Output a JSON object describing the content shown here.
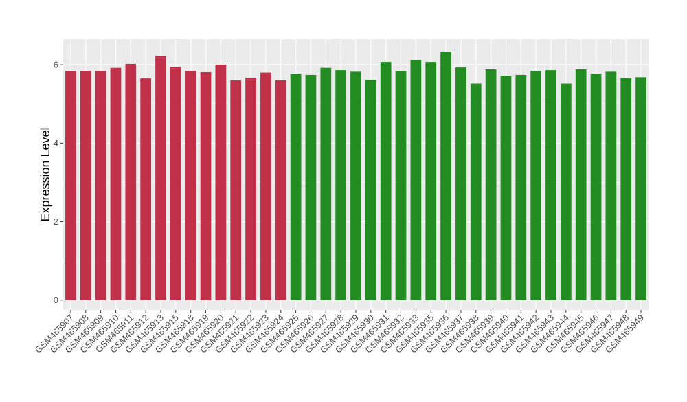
{
  "chart_data": {
    "type": "bar",
    "title": "",
    "xlabel": "",
    "ylabel": "Expression Level",
    "ylim": [
      -0.25,
      6.65
    ],
    "yticks": [
      0,
      2,
      4,
      6
    ],
    "grid": true,
    "legend": "none",
    "colors": {
      "group_a": "#c1314a",
      "group_b": "#228b22",
      "panel": "#ebebeb",
      "grid": "#ffffff"
    },
    "categories": [
      "GSM465907",
      "GSM465908",
      "GSM465909",
      "GSM465910",
      "GSM465911",
      "GSM465912",
      "GSM465913",
      "GSM465915",
      "GSM465918",
      "GSM465919",
      "GSM465920",
      "GSM465921",
      "GSM465922",
      "GSM465923",
      "GSM465924",
      "GSM465925",
      "GSM465926",
      "GSM465927",
      "GSM465928",
      "GSM465929",
      "GSM465930",
      "GSM465931",
      "GSM465932",
      "GSM465933",
      "GSM465935",
      "GSM465936",
      "GSM465937",
      "GSM465938",
      "GSM465939",
      "GSM465940",
      "GSM465941",
      "GSM465942",
      "GSM465943",
      "GSM465944",
      "GSM465945",
      "GSM465946",
      "GSM465947",
      "GSM465948",
      "GSM465949"
    ],
    "values": [
      5.83,
      5.83,
      5.83,
      5.92,
      6.02,
      5.65,
      6.23,
      5.95,
      5.83,
      5.81,
      6.0,
      5.6,
      5.67,
      5.8,
      5.6,
      5.77,
      5.74,
      5.92,
      5.86,
      5.82,
      5.61,
      6.07,
      5.83,
      6.11,
      6.07,
      6.33,
      5.93,
      5.52,
      5.88,
      5.72,
      5.74,
      5.84,
      5.86,
      5.52,
      5.88,
      5.77,
      5.82,
      5.66,
      5.68
    ],
    "groups": [
      "a",
      "a",
      "a",
      "a",
      "a",
      "a",
      "a",
      "a",
      "a",
      "a",
      "a",
      "a",
      "a",
      "a",
      "a",
      "b",
      "b",
      "b",
      "b",
      "b",
      "b",
      "b",
      "b",
      "b",
      "b",
      "b",
      "b",
      "b",
      "b",
      "b",
      "b",
      "b",
      "b",
      "b",
      "b",
      "b",
      "b",
      "b",
      "b"
    ]
  }
}
